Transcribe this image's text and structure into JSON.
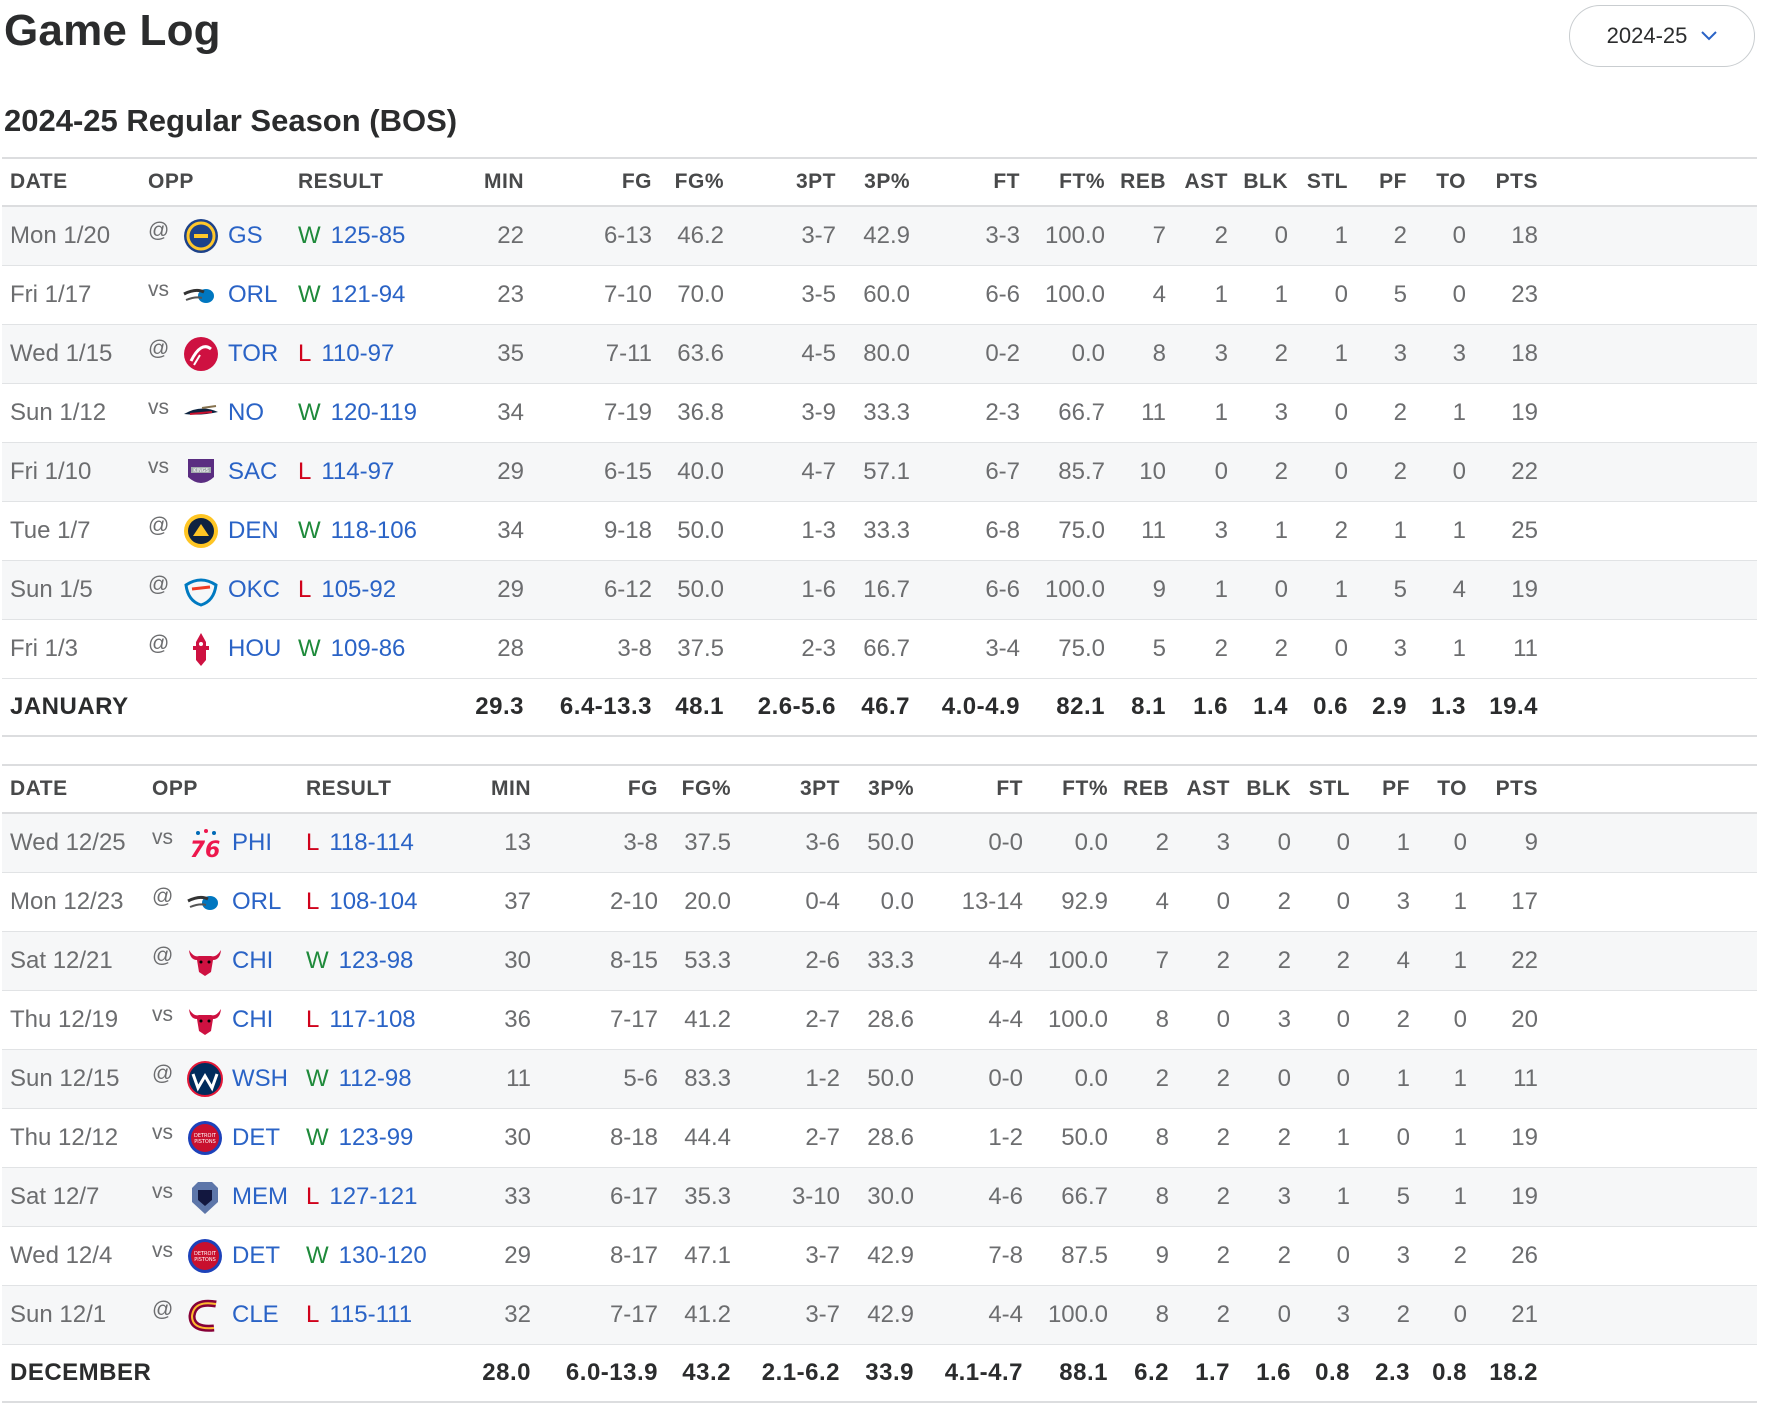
{
  "page": {
    "title": "Game Log",
    "season_select": "2024-25",
    "section_title": "2024-25 Regular Season (BOS)"
  },
  "columns": [
    "DATE",
    "OPP",
    "RESULT",
    "MIN",
    "FG",
    "FG%",
    "3PT",
    "3P%",
    "FT",
    "FT%",
    "REB",
    "AST",
    "BLK",
    "STL",
    "PF",
    "TO",
    "PTS"
  ],
  "months": [
    {
      "name": "JANUARY",
      "totals": [
        "29.3",
        "6.4-13.3",
        "48.1",
        "2.6-5.6",
        "46.7",
        "4.0-4.9",
        "82.1",
        "8.1",
        "1.6",
        "1.4",
        "0.6",
        "2.9",
        "1.3",
        "19.4"
      ],
      "games": [
        {
          "date": "Mon 1/20",
          "loc": "@",
          "team": "GS",
          "logo": "warriors-logo",
          "wl": "W",
          "score": "125-85",
          "stats": [
            "22",
            "6-13",
            "46.2",
            "3-7",
            "42.9",
            "3-3",
            "100.0",
            "7",
            "2",
            "0",
            "1",
            "2",
            "0",
            "18"
          ]
        },
        {
          "date": "Fri 1/17",
          "loc": "vs",
          "team": "ORL",
          "logo": "magic-logo",
          "wl": "W",
          "score": "121-94",
          "stats": [
            "23",
            "7-10",
            "70.0",
            "3-5",
            "60.0",
            "6-6",
            "100.0",
            "4",
            "1",
            "1",
            "0",
            "5",
            "0",
            "23"
          ]
        },
        {
          "date": "Wed 1/15",
          "loc": "@",
          "team": "TOR",
          "logo": "raptors-logo",
          "wl": "L",
          "score": "110-97",
          "stats": [
            "35",
            "7-11",
            "63.6",
            "4-5",
            "80.0",
            "0-2",
            "0.0",
            "8",
            "3",
            "2",
            "1",
            "3",
            "3",
            "18"
          ]
        },
        {
          "date": "Sun 1/12",
          "loc": "vs",
          "team": "NO",
          "logo": "pelicans-logo",
          "wl": "W",
          "score": "120-119",
          "stats": [
            "34",
            "7-19",
            "36.8",
            "3-9",
            "33.3",
            "2-3",
            "66.7",
            "11",
            "1",
            "3",
            "0",
            "2",
            "1",
            "19"
          ]
        },
        {
          "date": "Fri 1/10",
          "loc": "vs",
          "team": "SAC",
          "logo": "kings-logo",
          "wl": "L",
          "score": "114-97",
          "stats": [
            "29",
            "6-15",
            "40.0",
            "4-7",
            "57.1",
            "6-7",
            "85.7",
            "10",
            "0",
            "2",
            "0",
            "2",
            "0",
            "22"
          ]
        },
        {
          "date": "Tue 1/7",
          "loc": "@",
          "team": "DEN",
          "logo": "nuggets-logo",
          "wl": "W",
          "score": "118-106",
          "stats": [
            "34",
            "9-18",
            "50.0",
            "1-3",
            "33.3",
            "6-8",
            "75.0",
            "11",
            "3",
            "1",
            "2",
            "1",
            "1",
            "25"
          ]
        },
        {
          "date": "Sun 1/5",
          "loc": "@",
          "team": "OKC",
          "logo": "thunder-logo",
          "wl": "L",
          "score": "105-92",
          "stats": [
            "29",
            "6-12",
            "50.0",
            "1-6",
            "16.7",
            "6-6",
            "100.0",
            "9",
            "1",
            "0",
            "1",
            "5",
            "4",
            "19"
          ]
        },
        {
          "date": "Fri 1/3",
          "loc": "@",
          "team": "HOU",
          "logo": "rockets-logo",
          "wl": "W",
          "score": "109-86",
          "stats": [
            "28",
            "3-8",
            "37.5",
            "2-3",
            "66.7",
            "3-4",
            "75.0",
            "5",
            "2",
            "2",
            "0",
            "3",
            "1",
            "11"
          ]
        }
      ]
    },
    {
      "name": "DECEMBER",
      "totals": [
        "28.0",
        "6.0-13.9",
        "43.2",
        "2.1-6.2",
        "33.9",
        "4.1-4.7",
        "88.1",
        "6.2",
        "1.7",
        "1.6",
        "0.8",
        "2.3",
        "0.8",
        "18.2"
      ],
      "games": [
        {
          "date": "Wed 12/25",
          "loc": "vs",
          "team": "PHI",
          "logo": "76ers-logo",
          "wl": "L",
          "score": "118-114",
          "stats": [
            "13",
            "3-8",
            "37.5",
            "3-6",
            "50.0",
            "0-0",
            "0.0",
            "2",
            "3",
            "0",
            "0",
            "1",
            "0",
            "9"
          ]
        },
        {
          "date": "Mon 12/23",
          "loc": "@",
          "team": "ORL",
          "logo": "magic-logo",
          "wl": "L",
          "score": "108-104",
          "stats": [
            "37",
            "2-10",
            "20.0",
            "0-4",
            "0.0",
            "13-14",
            "92.9",
            "4",
            "0",
            "2",
            "0",
            "3",
            "1",
            "17"
          ]
        },
        {
          "date": "Sat 12/21",
          "loc": "@",
          "team": "CHI",
          "logo": "bulls-logo",
          "wl": "W",
          "score": "123-98",
          "stats": [
            "30",
            "8-15",
            "53.3",
            "2-6",
            "33.3",
            "4-4",
            "100.0",
            "7",
            "2",
            "2",
            "2",
            "4",
            "1",
            "22"
          ]
        },
        {
          "date": "Thu 12/19",
          "loc": "vs",
          "team": "CHI",
          "logo": "bulls-logo",
          "wl": "L",
          "score": "117-108",
          "stats": [
            "36",
            "7-17",
            "41.2",
            "2-7",
            "28.6",
            "4-4",
            "100.0",
            "8",
            "0",
            "3",
            "0",
            "2",
            "0",
            "20"
          ]
        },
        {
          "date": "Sun 12/15",
          "loc": "@",
          "team": "WSH",
          "logo": "wizards-logo",
          "wl": "W",
          "score": "112-98",
          "stats": [
            "11",
            "5-6",
            "83.3",
            "1-2",
            "50.0",
            "0-0",
            "0.0",
            "2",
            "2",
            "0",
            "0",
            "1",
            "1",
            "11"
          ]
        },
        {
          "date": "Thu 12/12",
          "loc": "vs",
          "team": "DET",
          "logo": "pistons-logo",
          "wl": "W",
          "score": "123-99",
          "stats": [
            "30",
            "8-18",
            "44.4",
            "2-7",
            "28.6",
            "1-2",
            "50.0",
            "8",
            "2",
            "2",
            "1",
            "0",
            "1",
            "19"
          ]
        },
        {
          "date": "Sat 12/7",
          "loc": "vs",
          "team": "MEM",
          "logo": "grizzlies-logo",
          "wl": "L",
          "score": "127-121",
          "stats": [
            "33",
            "6-17",
            "35.3",
            "3-10",
            "30.0",
            "4-6",
            "66.7",
            "8",
            "2",
            "3",
            "1",
            "5",
            "1",
            "19"
          ]
        },
        {
          "date": "Wed 12/4",
          "loc": "vs",
          "team": "DET",
          "logo": "pistons-logo",
          "wl": "W",
          "score": "130-120",
          "stats": [
            "29",
            "8-17",
            "47.1",
            "3-7",
            "42.9",
            "7-8",
            "87.5",
            "9",
            "2",
            "2",
            "0",
            "3",
            "2",
            "26"
          ]
        },
        {
          "date": "Sun 12/1",
          "loc": "@",
          "team": "CLE",
          "logo": "cavaliers-logo",
          "wl": "L",
          "score": "115-111",
          "stats": [
            "32",
            "7-17",
            "41.2",
            "3-7",
            "42.9",
            "4-4",
            "100.0",
            "8",
            "2",
            "0",
            "3",
            "2",
            "0",
            "21"
          ]
        }
      ]
    }
  ],
  "colors": {
    "win": "#1f8a3b",
    "loss": "#d0021b",
    "link": "#2a63c6",
    "text": "#2b2c2d",
    "muted": "#6c6d6f",
    "stripe": "#f6f7f8"
  }
}
